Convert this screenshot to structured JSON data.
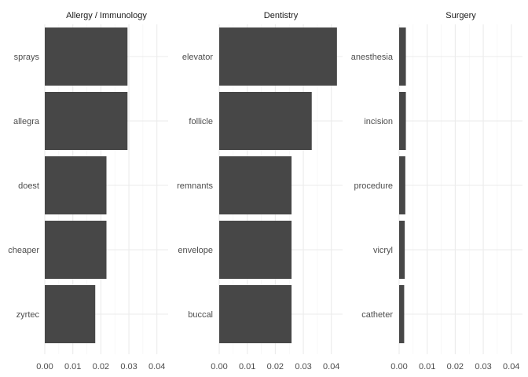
{
  "chart_data": [
    {
      "type": "bar",
      "orientation": "horizontal",
      "title": "Allergy / Immunology",
      "categories": [
        "sprays",
        "allegra",
        "doest",
        "cheaper",
        "zyrtec"
      ],
      "values": [
        0.0295,
        0.0295,
        0.022,
        0.022,
        0.018
      ],
      "xlim": [
        0,
        0.044
      ],
      "xticks": [
        "0.00",
        "0.01",
        "0.02",
        "0.03",
        "0.04"
      ],
      "xlabel": "",
      "ylabel": ""
    },
    {
      "type": "bar",
      "orientation": "horizontal",
      "title": "Dentistry",
      "categories": [
        "elevator",
        "follicle",
        "remnants",
        "envelope",
        "buccal"
      ],
      "values": [
        0.042,
        0.033,
        0.0258,
        0.0258,
        0.0258
      ],
      "xlim": [
        0,
        0.044
      ],
      "xticks": [
        "0.00",
        "0.01",
        "0.02",
        "0.03",
        "0.04"
      ],
      "xlabel": "",
      "ylabel": ""
    },
    {
      "type": "bar",
      "orientation": "horizontal",
      "title": "Surgery",
      "categories": [
        "anesthesia",
        "incision",
        "procedure",
        "vicryl",
        "catheter"
      ],
      "values": [
        0.0024,
        0.0024,
        0.0022,
        0.002,
        0.0018
      ],
      "xlim": [
        0,
        0.044
      ],
      "xticks": [
        "0.00",
        "0.01",
        "0.02",
        "0.03",
        "0.04"
      ],
      "xlabel": "",
      "ylabel": ""
    }
  ],
  "colors": {
    "bar": "#474747",
    "grid_major": "#ebebeb",
    "grid_minor": "#f3f3f3",
    "text": "#4d4d4d",
    "strip_text": "#1a1a1a",
    "background": "#ffffff"
  },
  "grid": true,
  "legend": "none"
}
